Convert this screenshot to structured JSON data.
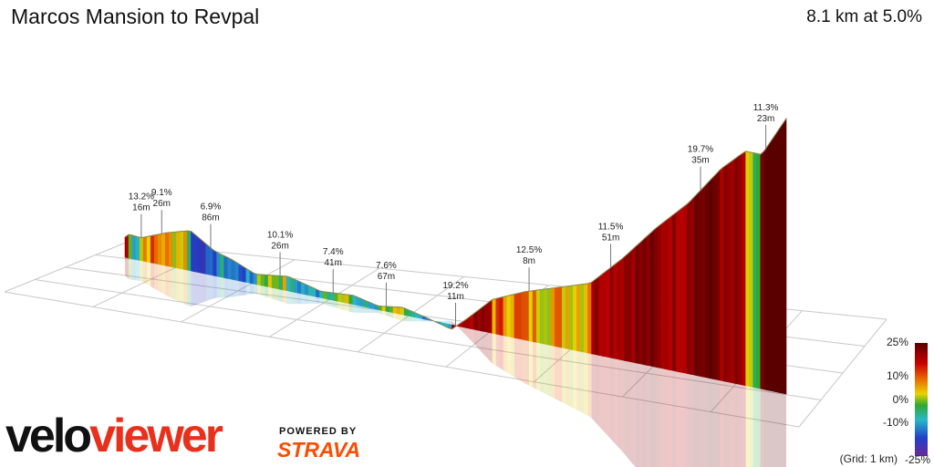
{
  "header": {
    "title": "Marcos Mansion to Revpal",
    "summary": "8.1 km at 5.0%"
  },
  "branding": {
    "logo_part1": "velo",
    "logo_part2": "viewer",
    "powered_by": "POWERED BY",
    "strava": "STRAVA"
  },
  "grid_note": "(Grid: 1 km)",
  "chart_data": {
    "type": "area",
    "title": "Marcos Mansion to Revpal",
    "distance_km": 8.1,
    "average_gradient_pct": 5.0,
    "grid_km": 1,
    "color_scale": {
      "ticks": [
        "25%",
        "10%",
        "0%",
        "-10%",
        "-25%"
      ],
      "values": [
        25,
        10,
        0,
        -10,
        -25
      ],
      "colors": [
        "#6b0000",
        "#d40000",
        "#e06a00",
        "#e8c800",
        "#3aa82a",
        "#2bb0c0",
        "#2040c0",
        "#5a1a8a"
      ]
    },
    "profile_km": [
      0,
      0.05,
      0.2,
      0.5,
      0.8,
      1.1,
      1.3,
      1.6,
      2.0,
      2.4,
      2.8,
      3.1,
      3.4,
      3.7,
      4.0,
      4.2,
      4.5,
      4.9,
      5.3,
      5.7,
      6.1,
      6.5,
      6.9,
      7.3,
      7.6,
      7.8,
      8.1
    ],
    "profile_elev_m": [
      0,
      8,
      6,
      28,
      44,
      10,
      0,
      -22,
      -12,
      -30,
      -24,
      -36,
      -28,
      -40,
      -54,
      -22,
      30,
      62,
      86,
      110,
      180,
      260,
      330,
      420,
      470,
      470,
      560
    ],
    "annotations": [
      {
        "gradient": "13.2%",
        "length": "16m",
        "km": 0.2
      },
      {
        "gradient": "9.1%",
        "length": "26m",
        "km": 0.45
      },
      {
        "gradient": "6.9%",
        "length": "86m",
        "km": 1.05
      },
      {
        "gradient": "10.1%",
        "length": "26m",
        "km": 1.9
      },
      {
        "gradient": "7.4%",
        "length": "41m",
        "km": 2.55
      },
      {
        "gradient": "7.6%",
        "length": "67m",
        "km": 3.2
      },
      {
        "gradient": "19.2%",
        "length": "11m",
        "km": 4.05
      },
      {
        "gradient": "12.5%",
        "length": "8m",
        "km": 4.95
      },
      {
        "gradient": "11.5%",
        "length": "51m",
        "km": 5.95
      },
      {
        "gradient": "19.7%",
        "length": "35m",
        "km": 7.05
      },
      {
        "gradient": "11.3%",
        "length": "23m",
        "km": 7.85
      }
    ]
  }
}
